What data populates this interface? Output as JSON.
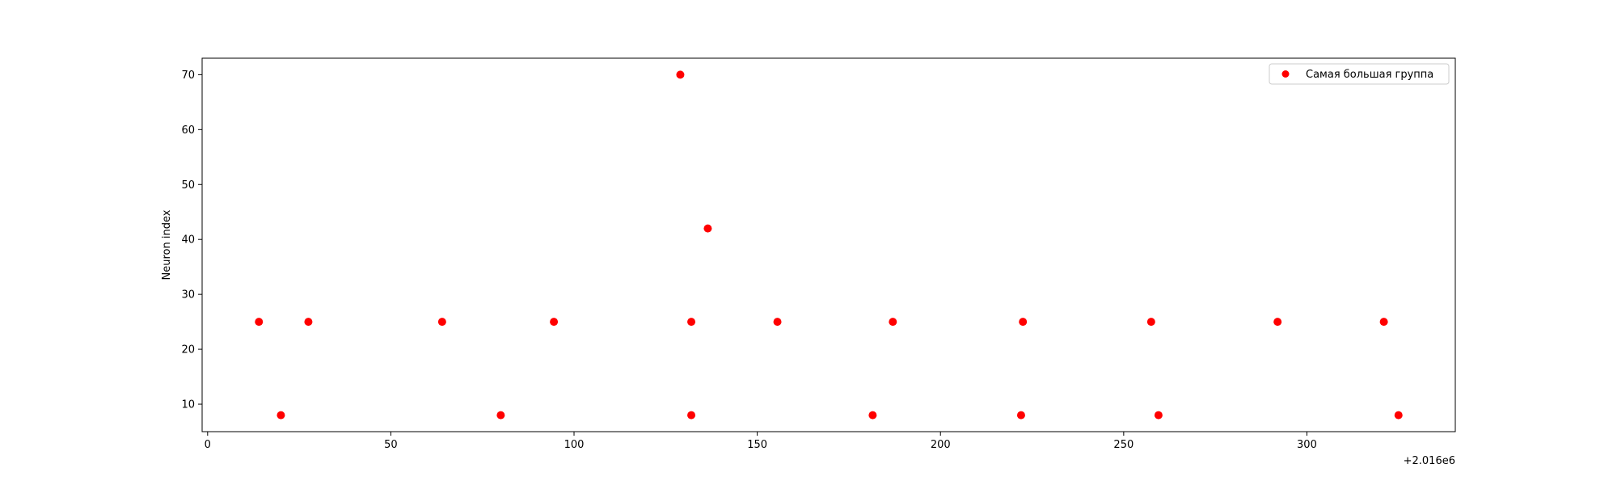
{
  "chart_data": {
    "type": "scatter",
    "title": "",
    "xlabel": "",
    "ylabel": "Neuron index",
    "x_offset_label": "+2.016e6",
    "xlim": [
      -1.5,
      340.5
    ],
    "ylim": [
      5,
      73
    ],
    "xticks": [
      0,
      50,
      100,
      150,
      200,
      250,
      300
    ],
    "yticks": [
      10,
      20,
      30,
      40,
      50,
      60,
      70
    ],
    "grid": false,
    "legend_position": "top-right",
    "series": [
      {
        "name": "Самая большая группа",
        "color": "#ff0000",
        "points": [
          {
            "x": 14,
            "y": 25
          },
          {
            "x": 20,
            "y": 8
          },
          {
            "x": 27.5,
            "y": 25
          },
          {
            "x": 64,
            "y": 25
          },
          {
            "x": 80,
            "y": 8
          },
          {
            "x": 94.5,
            "y": 25
          },
          {
            "x": 129,
            "y": 70
          },
          {
            "x": 132,
            "y": 25
          },
          {
            "x": 132,
            "y": 8
          },
          {
            "x": 136.5,
            "y": 42
          },
          {
            "x": 155.5,
            "y": 25
          },
          {
            "x": 181.5,
            "y": 8
          },
          {
            "x": 187,
            "y": 25
          },
          {
            "x": 222,
            "y": 8
          },
          {
            "x": 222.5,
            "y": 25
          },
          {
            "x": 257.5,
            "y": 25
          },
          {
            "x": 259.5,
            "y": 8
          },
          {
            "x": 292,
            "y": 25
          },
          {
            "x": 321,
            "y": 25
          },
          {
            "x": 325,
            "y": 8
          }
        ]
      }
    ]
  }
}
